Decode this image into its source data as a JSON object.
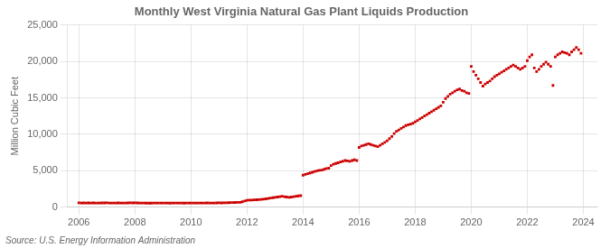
{
  "chart_data": {
    "type": "scatter",
    "title": "Monthly West Virginia Natural Gas Plant Liquids Production",
    "ylabel": "Million Cubic Feet",
    "annotations": [
      "Source: U.S. Energy Information Administration"
    ],
    "color": "#cc0000",
    "marker": "square",
    "grid": true,
    "xlim": [
      2005.6,
      2024.5
    ],
    "xticks": [
      2006,
      2008,
      2010,
      2012,
      2014,
      2016,
      2018,
      2020,
      2022,
      2024
    ],
    "ylim": [
      0,
      25000
    ],
    "yticks": [
      0,
      {
        "value": 5000,
        "label": "5,000"
      },
      {
        "value": 10000,
        "label": "10,000"
      },
      {
        "value": 15000,
        "label": "15,000"
      },
      {
        "value": 20000,
        "label": "20,000"
      },
      {
        "value": 25000,
        "label": "25,000"
      }
    ],
    "x": [
      2006.0,
      2006.083,
      2006.167,
      2006.25,
      2006.333,
      2006.417,
      2006.5,
      2006.583,
      2006.667,
      2006.75,
      2006.833,
      2006.917,
      2007.0,
      2007.083,
      2007.167,
      2007.25,
      2007.333,
      2007.417,
      2007.5,
      2007.583,
      2007.667,
      2007.75,
      2007.833,
      2007.917,
      2008.0,
      2008.083,
      2008.167,
      2008.25,
      2008.333,
      2008.417,
      2008.5,
      2008.583,
      2008.667,
      2008.75,
      2008.833,
      2008.917,
      2009.0,
      2009.083,
      2009.167,
      2009.25,
      2009.333,
      2009.417,
      2009.5,
      2009.583,
      2009.667,
      2009.75,
      2009.833,
      2009.917,
      2010.0,
      2010.083,
      2010.167,
      2010.25,
      2010.333,
      2010.417,
      2010.5,
      2010.583,
      2010.667,
      2010.75,
      2010.833,
      2010.917,
      2011.0,
      2011.083,
      2011.167,
      2011.25,
      2011.333,
      2011.417,
      2011.5,
      2011.583,
      2011.667,
      2011.75,
      2011.833,
      2011.917,
      2012.0,
      2012.083,
      2012.167,
      2012.25,
      2012.333,
      2012.417,
      2012.5,
      2012.583,
      2012.667,
      2012.75,
      2012.833,
      2012.917,
      2013.0,
      2013.083,
      2013.167,
      2013.25,
      2013.333,
      2013.417,
      2013.5,
      2013.583,
      2013.667,
      2013.75,
      2013.833,
      2013.917,
      2014.0,
      2014.083,
      2014.167,
      2014.25,
      2014.333,
      2014.417,
      2014.5,
      2014.583,
      2014.667,
      2014.75,
      2014.833,
      2014.917,
      2015.0,
      2015.083,
      2015.167,
      2015.25,
      2015.333,
      2015.417,
      2015.5,
      2015.583,
      2015.667,
      2015.75,
      2015.833,
      2015.917,
      2016.0,
      2016.083,
      2016.167,
      2016.25,
      2016.333,
      2016.417,
      2016.5,
      2016.583,
      2016.667,
      2016.75,
      2016.833,
      2016.917,
      2017.0,
      2017.083,
      2017.167,
      2017.25,
      2017.333,
      2017.417,
      2017.5,
      2017.583,
      2017.667,
      2017.75,
      2017.833,
      2017.917,
      2018.0,
      2018.083,
      2018.167,
      2018.25,
      2018.333,
      2018.417,
      2018.5,
      2018.583,
      2018.667,
      2018.75,
      2018.833,
      2018.917,
      2019.0,
      2019.083,
      2019.167,
      2019.25,
      2019.333,
      2019.417,
      2019.5,
      2019.583,
      2019.667,
      2019.75,
      2019.833,
      2019.917,
      2020.0,
      2020.083,
      2020.167,
      2020.25,
      2020.333,
      2020.417,
      2020.5,
      2020.583,
      2020.667,
      2020.75,
      2020.833,
      2020.917,
      2021.0,
      2021.083,
      2021.167,
      2021.25,
      2021.333,
      2021.417,
      2021.5,
      2021.583,
      2021.667,
      2021.75,
      2021.833,
      2021.917,
      2022.0,
      2022.083,
      2022.167,
      2022.25,
      2022.333,
      2022.417,
      2022.5,
      2022.583,
      2022.667,
      2022.75,
      2022.833,
      2022.917,
      2023.0,
      2023.083,
      2023.167,
      2023.25,
      2023.333,
      2023.417,
      2023.5,
      2023.583,
      2023.667,
      2023.75,
      2023.833,
      2023.917
    ],
    "values": [
      600,
      580,
      590,
      570,
      590,
      580,
      590,
      575,
      580,
      585,
      595,
      590,
      600,
      585,
      580,
      570,
      585,
      590,
      575,
      580,
      585,
      590,
      600,
      595,
      605,
      590,
      580,
      570,
      575,
      565,
      560,
      565,
      570,
      575,
      585,
      580,
      585,
      575,
      570,
      565,
      570,
      575,
      580,
      575,
      570,
      565,
      575,
      580,
      585,
      580,
      575,
      570,
      575,
      580,
      585,
      590,
      580,
      575,
      585,
      590,
      600,
      595,
      605,
      615,
      625,
      635,
      645,
      655,
      665,
      675,
      750,
      850,
      950,
      970,
      990,
      1010,
      1030,
      1050,
      1070,
      1100,
      1150,
      1200,
      1250,
      1300,
      1350,
      1400,
      1450,
      1500,
      1450,
      1400,
      1350,
      1400,
      1450,
      1500,
      1550,
      1580,
      4400,
      4500,
      4600,
      4700,
      4800,
      4900,
      5000,
      5050,
      5100,
      5200,
      5300,
      5350,
      5700,
      5900,
      6000,
      6100,
      6200,
      6300,
      6400,
      6350,
      6300,
      6400,
      6500,
      6400,
      8200,
      8400,
      8500,
      8600,
      8700,
      8600,
      8500,
      8400,
      8300,
      8500,
      8700,
      8900,
      9100,
      9400,
      9700,
      10100,
      10400,
      10600,
      10800,
      11000,
      11200,
      11300,
      11400,
      11500,
      11700,
      11900,
      12100,
      12300,
      12500,
      12700,
      12900,
      13100,
      13300,
      13500,
      13700,
      13900,
      14400,
      14900,
      15200,
      15500,
      15700,
      15900,
      16100,
      16200,
      16000,
      15900,
      15700,
      15600,
      19300,
      18600,
      18100,
      17600,
      17100,
      16600,
      16900,
      17100,
      17300,
      17600,
      17900,
      18100,
      18300,
      18500,
      18700,
      18900,
      19100,
      19300,
      19500,
      19300,
      19100,
      18900,
      19100,
      19300,
      20100,
      20600,
      20900,
      19100,
      18600,
      18900,
      19300,
      19600,
      19900,
      19600,
      19300,
      16700,
      20600,
      20900,
      21100,
      21300,
      21200,
      21100,
      20900,
      21300,
      21600,
      21900,
      21600,
      21100
    ]
  }
}
